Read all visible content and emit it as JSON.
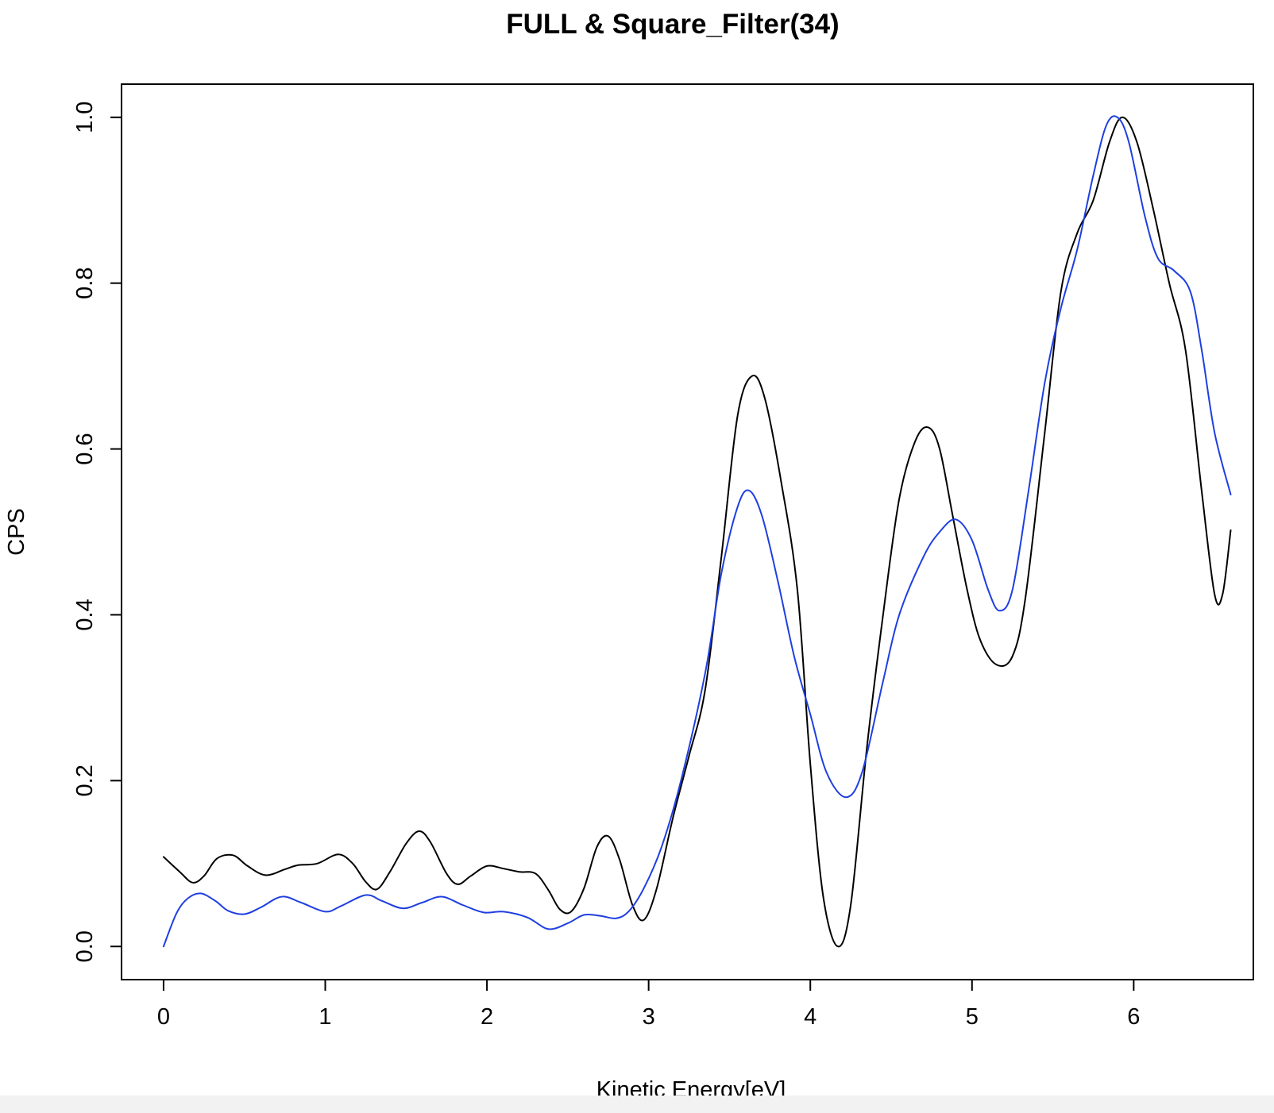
{
  "chart_data": {
    "type": "line",
    "title": "FULL & Square_Filter(34)",
    "xlabel": "Kinetic Energy[eV]",
    "ylabel": "CPS",
    "xlim": [
      -0.26,
      6.74
    ],
    "ylim": [
      -0.04,
      1.04
    ],
    "xticks": [
      0,
      1,
      2,
      3,
      4,
      5,
      6
    ],
    "yticks": [
      0.0,
      0.2,
      0.4,
      0.6,
      0.8,
      1.0
    ],
    "xtick_labels": [
      "0",
      "1",
      "2",
      "3",
      "4",
      "5",
      "6"
    ],
    "ytick_labels": [
      "0.0",
      "0.2",
      "0.4",
      "0.6",
      "0.8",
      "1.0"
    ],
    "grid": false,
    "legend": "none",
    "series": [
      {
        "color": "#000000",
        "points": [
          [
            0.0,
            0.108
          ],
          [
            0.1,
            0.09
          ],
          [
            0.18,
            0.077
          ],
          [
            0.25,
            0.085
          ],
          [
            0.33,
            0.106
          ],
          [
            0.43,
            0.11
          ],
          [
            0.52,
            0.097
          ],
          [
            0.63,
            0.086
          ],
          [
            0.75,
            0.093
          ],
          [
            0.83,
            0.098
          ],
          [
            0.95,
            0.1
          ],
          [
            1.08,
            0.111
          ],
          [
            1.17,
            0.1
          ],
          [
            1.25,
            0.078
          ],
          [
            1.32,
            0.069
          ],
          [
            1.4,
            0.09
          ],
          [
            1.5,
            0.124
          ],
          [
            1.58,
            0.139
          ],
          [
            1.65,
            0.126
          ],
          [
            1.75,
            0.088
          ],
          [
            1.82,
            0.075
          ],
          [
            1.9,
            0.085
          ],
          [
            2.0,
            0.097
          ],
          [
            2.1,
            0.094
          ],
          [
            2.2,
            0.09
          ],
          [
            2.3,
            0.088
          ],
          [
            2.38,
            0.068
          ],
          [
            2.45,
            0.045
          ],
          [
            2.52,
            0.042
          ],
          [
            2.6,
            0.07
          ],
          [
            2.68,
            0.12
          ],
          [
            2.75,
            0.133
          ],
          [
            2.82,
            0.105
          ],
          [
            2.9,
            0.05
          ],
          [
            2.97,
            0.032
          ],
          [
            3.05,
            0.07
          ],
          [
            3.15,
            0.155
          ],
          [
            3.25,
            0.23
          ],
          [
            3.35,
            0.31
          ],
          [
            3.45,
            0.47
          ],
          [
            3.55,
            0.64
          ],
          [
            3.64,
            0.688
          ],
          [
            3.72,
            0.66
          ],
          [
            3.82,
            0.56
          ],
          [
            3.92,
            0.43
          ],
          [
            4.0,
            0.22
          ],
          [
            4.08,
            0.06
          ],
          [
            4.17,
            0.0
          ],
          [
            4.25,
            0.05
          ],
          [
            4.35,
            0.24
          ],
          [
            4.45,
            0.4
          ],
          [
            4.55,
            0.54
          ],
          [
            4.65,
            0.61
          ],
          [
            4.73,
            0.626
          ],
          [
            4.8,
            0.6
          ],
          [
            4.88,
            0.52
          ],
          [
            4.97,
            0.43
          ],
          [
            5.05,
            0.37
          ],
          [
            5.15,
            0.34
          ],
          [
            5.25,
            0.35
          ],
          [
            5.33,
            0.42
          ],
          [
            5.45,
            0.62
          ],
          [
            5.55,
            0.79
          ],
          [
            5.65,
            0.86
          ],
          [
            5.75,
            0.9
          ],
          [
            5.85,
            0.97
          ],
          [
            5.93,
            1.0
          ],
          [
            6.02,
            0.97
          ],
          [
            6.12,
            0.89
          ],
          [
            6.22,
            0.8
          ],
          [
            6.32,
            0.72
          ],
          [
            6.42,
            0.55
          ],
          [
            6.5,
            0.425
          ],
          [
            6.55,
            0.425
          ],
          [
            6.6,
            0.502
          ]
        ]
      },
      {
        "color": "#1f3fe0",
        "points": [
          [
            0.0,
            0.0
          ],
          [
            0.08,
            0.04
          ],
          [
            0.15,
            0.058
          ],
          [
            0.23,
            0.064
          ],
          [
            0.32,
            0.055
          ],
          [
            0.4,
            0.043
          ],
          [
            0.5,
            0.039
          ],
          [
            0.6,
            0.047
          ],
          [
            0.73,
            0.06
          ],
          [
            0.85,
            0.053
          ],
          [
            1.0,
            0.042
          ],
          [
            1.1,
            0.049
          ],
          [
            1.25,
            0.062
          ],
          [
            1.35,
            0.055
          ],
          [
            1.48,
            0.046
          ],
          [
            1.6,
            0.053
          ],
          [
            1.72,
            0.06
          ],
          [
            1.85,
            0.05
          ],
          [
            1.98,
            0.041
          ],
          [
            2.1,
            0.042
          ],
          [
            2.25,
            0.035
          ],
          [
            2.38,
            0.021
          ],
          [
            2.5,
            0.028
          ],
          [
            2.6,
            0.038
          ],
          [
            2.7,
            0.037
          ],
          [
            2.8,
            0.034
          ],
          [
            2.88,
            0.043
          ],
          [
            2.97,
            0.07
          ],
          [
            3.08,
            0.12
          ],
          [
            3.2,
            0.2
          ],
          [
            3.35,
            0.33
          ],
          [
            3.45,
            0.45
          ],
          [
            3.55,
            0.53
          ],
          [
            3.62,
            0.55
          ],
          [
            3.7,
            0.52
          ],
          [
            3.8,
            0.44
          ],
          [
            3.9,
            0.35
          ],
          [
            4.0,
            0.28
          ],
          [
            4.1,
            0.21
          ],
          [
            4.22,
            0.18
          ],
          [
            4.32,
            0.21
          ],
          [
            4.45,
            0.32
          ],
          [
            4.55,
            0.4
          ],
          [
            4.7,
            0.47
          ],
          [
            4.8,
            0.5
          ],
          [
            4.9,
            0.515
          ],
          [
            5.0,
            0.49
          ],
          [
            5.1,
            0.43
          ],
          [
            5.17,
            0.405
          ],
          [
            5.25,
            0.43
          ],
          [
            5.35,
            0.55
          ],
          [
            5.45,
            0.68
          ],
          [
            5.55,
            0.77
          ],
          [
            5.65,
            0.84
          ],
          [
            5.75,
            0.93
          ],
          [
            5.83,
            0.99
          ],
          [
            5.9,
            1.0
          ],
          [
            5.97,
            0.97
          ],
          [
            6.07,
            0.88
          ],
          [
            6.15,
            0.83
          ],
          [
            6.25,
            0.815
          ],
          [
            6.35,
            0.79
          ],
          [
            6.42,
            0.72
          ],
          [
            6.5,
            0.62
          ],
          [
            6.6,
            0.545
          ]
        ]
      }
    ]
  }
}
